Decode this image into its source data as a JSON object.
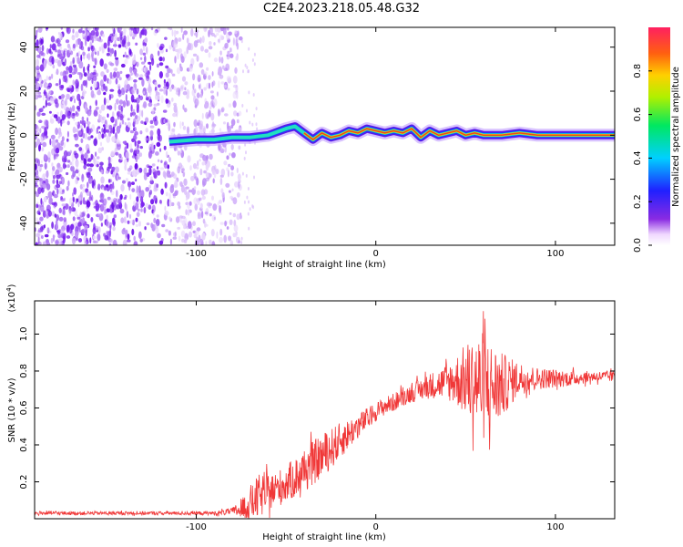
{
  "title": "C2E4.2023.218.05.48.G32",
  "colors": {
    "snr_line": "#f03838",
    "frame": "#000000",
    "ridge": "#e84a1a"
  },
  "chart_data": [
    {
      "type": "heatmap",
      "title": "C2E4.2023.218.05.48.G32",
      "xlabel": "Height of straight line (km)",
      "ylabel": "Frequency (Hz)",
      "xlim": [
        -190,
        133
      ],
      "ylim": [
        -50,
        49
      ],
      "xticks": [
        -100,
        0,
        100
      ],
      "xtick_labels": [
        "-100",
        "0",
        "100"
      ],
      "yticks": [
        -40,
        -20,
        0,
        20,
        40
      ],
      "ytick_labels": [
        "-40",
        "-20",
        "0",
        "20",
        "40"
      ],
      "colorbar": {
        "label": "Normalized spectral amplitude",
        "range": [
          0,
          1
        ],
        "ticks": [
          0.0,
          0.2,
          0.4,
          0.6,
          0.8
        ],
        "tick_labels": [
          "0.0",
          "0.2",
          "0.4",
          "0.6",
          "0.8"
        ],
        "colormap": "rainbow (white-violet-blue-cyan-green-yellow-red)"
      },
      "description_regions": {
        "noise_region_x": [
          -190,
          -75
        ],
        "signal_start_x": -115,
        "ridge_frequency_hz": 0
      },
      "ridge": {
        "x": [
          -115,
          -100,
          -90,
          -80,
          -70,
          -60,
          -50,
          -45,
          -40,
          -35,
          -30,
          -25,
          -20,
          -15,
          -10,
          -5,
          0,
          5,
          10,
          15,
          20,
          25,
          30,
          35,
          40,
          45,
          50,
          55,
          60,
          70,
          80,
          90,
          100,
          110,
          120,
          133
        ],
        "y": [
          -3,
          -2,
          -2,
          -1,
          -1,
          0,
          3,
          4,
          1,
          -2,
          1,
          -1,
          0,
          2,
          1,
          3,
          2,
          1,
          2,
          1,
          3,
          -1,
          2,
          0,
          1,
          2,
          0,
          1,
          0,
          0,
          1,
          0,
          0,
          0,
          0,
          0
        ]
      },
      "grid": false
    },
    {
      "type": "line",
      "xlabel": "Height of straight line (km)",
      "ylabel": "SNR (10 * v/v)",
      "y_multiplier_label": "(x10",
      "y_multiplier_exp": "4",
      "y_multiplier_close": ")",
      "xlim": [
        -190,
        133
      ],
      "ylim": [
        0,
        1.18
      ],
      "xticks": [
        -100,
        0,
        100
      ],
      "xtick_labels": [
        "-100",
        "0",
        "100"
      ],
      "yticks": [
        0.2,
        0.4,
        0.6,
        0.8,
        1.0
      ],
      "ytick_labels": [
        "0.2",
        "0.4",
        "0.6",
        "0.8",
        "1.0"
      ],
      "series": [
        {
          "x": [
            -190,
            -170,
            -150,
            -130,
            -110,
            -90,
            -80,
            -75,
            -70,
            -65,
            -60,
            -55,
            -50,
            -45,
            -40,
            -35,
            -30,
            -25,
            -20,
            -15,
            -10,
            -5,
            0,
            5,
            10,
            15,
            20,
            25,
            30,
            35,
            40,
            45,
            50,
            55,
            60,
            65,
            70,
            75,
            80,
            90,
            100,
            110,
            120,
            133
          ],
          "y": [
            0.03,
            0.03,
            0.03,
            0.03,
            0.03,
            0.03,
            0.04,
            0.05,
            0.08,
            0.12,
            0.14,
            0.16,
            0.19,
            0.22,
            0.26,
            0.3,
            0.34,
            0.38,
            0.42,
            0.46,
            0.5,
            0.54,
            0.58,
            0.61,
            0.63,
            0.66,
            0.68,
            0.7,
            0.72,
            0.73,
            0.74,
            0.75,
            0.75,
            0.74,
            0.72,
            0.71,
            0.72,
            0.74,
            0.76,
            0.76,
            0.76,
            0.76,
            0.77,
            0.77
          ],
          "noise_amplitude": [
            0.01,
            0.01,
            0.01,
            0.01,
            0.01,
            0.01,
            0.02,
            0.05,
            0.1,
            0.12,
            0.1,
            0.1,
            0.1,
            0.11,
            0.12,
            0.12,
            0.12,
            0.11,
            0.1,
            0.08,
            0.07,
            0.06,
            0.05,
            0.05,
            0.05,
            0.05,
            0.05,
            0.06,
            0.07,
            0.08,
            0.1,
            0.14,
            0.2,
            0.25,
            0.3,
            0.24,
            0.18,
            0.13,
            0.09,
            0.06,
            0.05,
            0.04,
            0.03,
            0.03
          ]
        }
      ],
      "grid": false
    }
  ]
}
